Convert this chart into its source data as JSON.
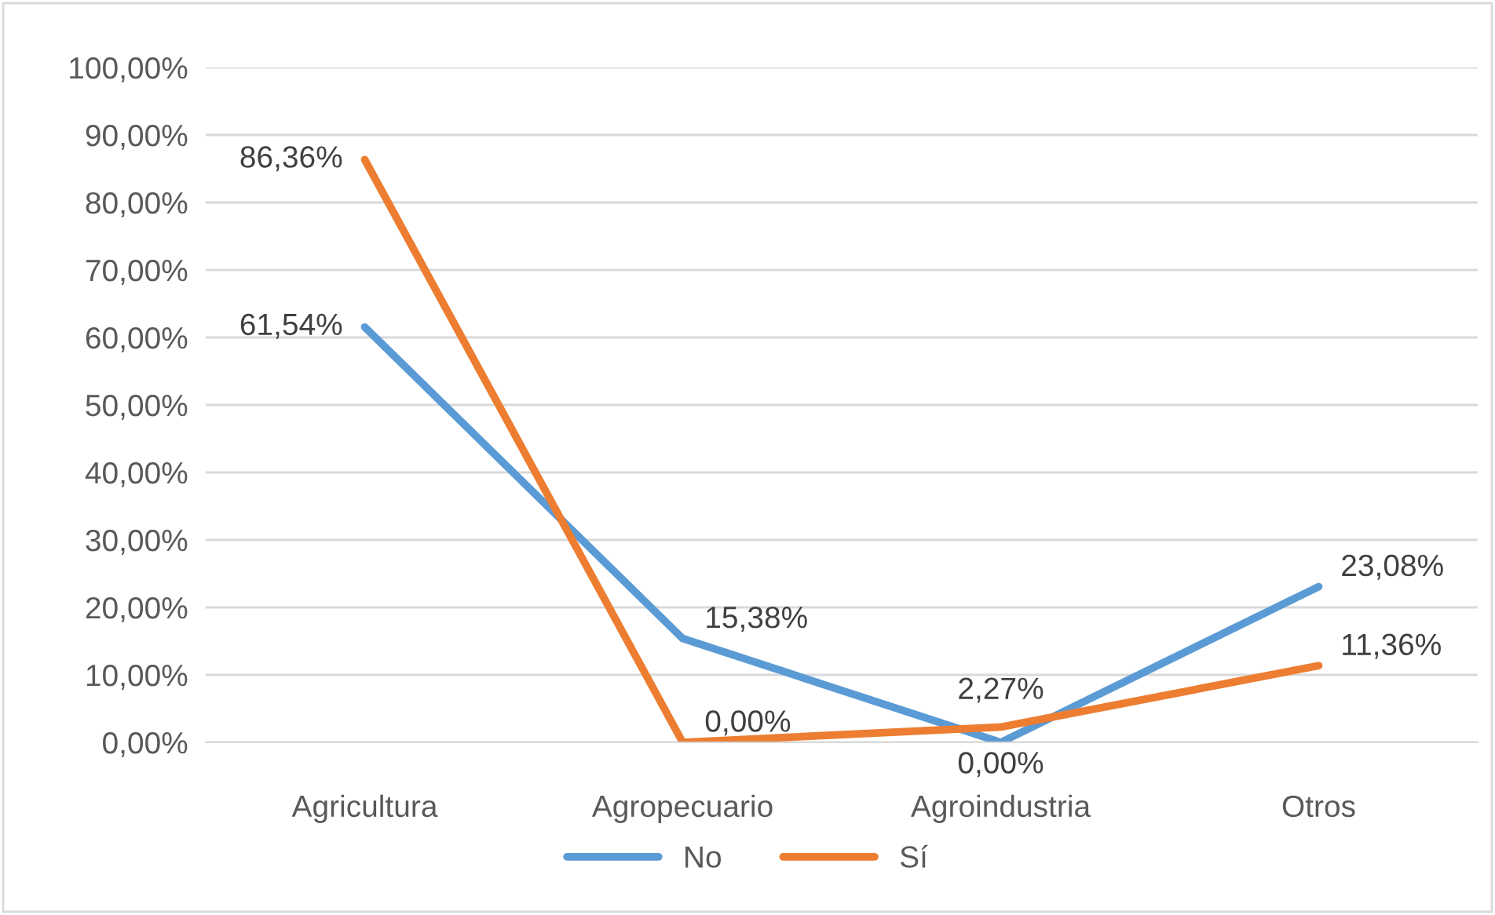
{
  "chart_data": {
    "type": "line",
    "categories": [
      "Agricultura",
      "Agropecuario",
      "Agroindustria",
      "Otros"
    ],
    "series": [
      {
        "name": "No",
        "color": "#5b9bd5",
        "values": [
          61.54,
          15.38,
          0,
          23.08
        ],
        "value_labels": [
          "61,54%",
          "15,38%",
          "0,00%",
          "23,08%"
        ]
      },
      {
        "name": "Sí",
        "color": "#ed7d31",
        "values": [
          86.36,
          0,
          2.27,
          11.36
        ],
        "value_labels": [
          "86,36%",
          "0,00%",
          "2,27%",
          "11,36%"
        ]
      }
    ],
    "ylim": [
      0,
      100
    ],
    "yticks": [
      {
        "value": 0,
        "label": "0,00%"
      },
      {
        "value": 10,
        "label": "10,00%"
      },
      {
        "value": 20,
        "label": "20,00%"
      },
      {
        "value": 30,
        "label": "30,00%"
      },
      {
        "value": 40,
        "label": "40,00%"
      },
      {
        "value": 50,
        "label": "50,00%"
      },
      {
        "value": 60,
        "label": "60,00%"
      },
      {
        "value": 70,
        "label": "70,00%"
      },
      {
        "value": 80,
        "label": "80,00%"
      },
      {
        "value": 90,
        "label": "90,00%"
      },
      {
        "value": 100,
        "label": "100,00%"
      }
    ],
    "grid": "y",
    "legend": "bottom",
    "marker": "none",
    "line_style": "solid"
  }
}
